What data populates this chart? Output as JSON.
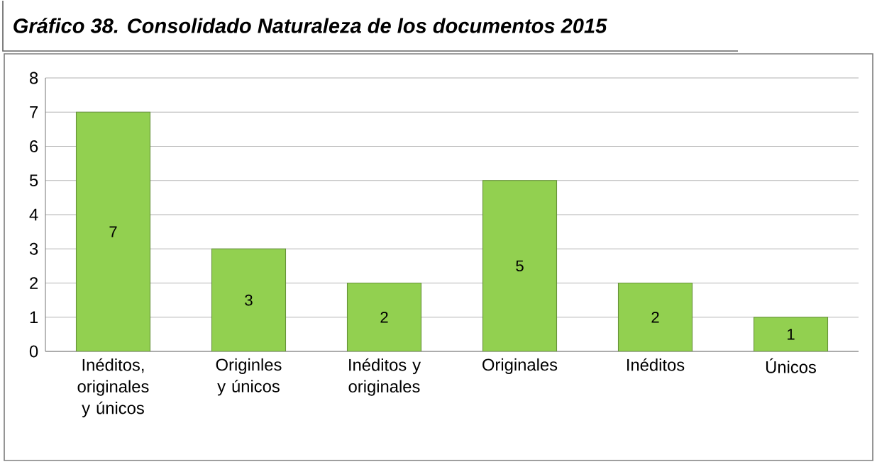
{
  "chart_data": {
    "type": "bar",
    "title": "Gráfico 38.  Consolidado Naturaleza de los documentos 2015",
    "categories": [
      "Inéditos, originales y únicos",
      "Originles y únicos",
      "Inéditos y originales",
      "Originales",
      "Inéditos",
      "Únicos"
    ],
    "values": [
      7,
      3,
      2,
      5,
      2,
      1
    ],
    "color": "#92d050",
    "ylim": [
      0,
      8
    ],
    "yticks": [
      0,
      1,
      2,
      3,
      4,
      5,
      6,
      7,
      8
    ],
    "grid": "y",
    "data_labels": true
  }
}
